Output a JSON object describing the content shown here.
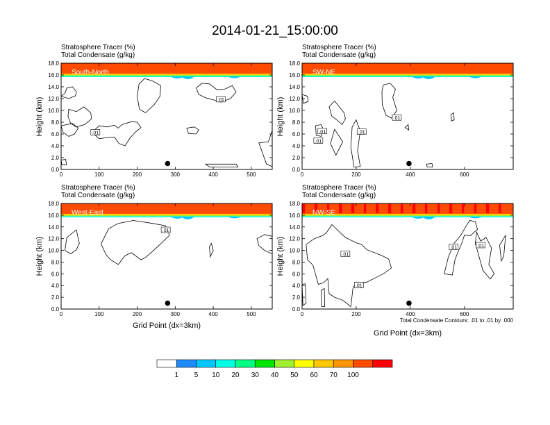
{
  "title": "2014-01-21_15:00:00",
  "panel_header": {
    "line1": "Stratosphere Tracer   (%)",
    "line2": "Total Condensate   (g/kg)"
  },
  "ylabel": "Height (km)",
  "xlabel": "Grid Point (dx=3km)",
  "contour_note": "Total Condensate Contours: .01 to .01 by .000",
  "chart_data": [
    {
      "type": "heatmap",
      "panel": "South-North",
      "title": "South-North",
      "xlim": [
        0,
        555
      ],
      "ylim": [
        0,
        18
      ],
      "xticks": [
        0,
        100,
        200,
        300,
        400,
        500
      ],
      "yticks": [
        0,
        2,
        4,
        6,
        8,
        10,
        12,
        14,
        16,
        18
      ],
      "ytick_labels": [
        "0.0",
        "2.0",
        "4.0",
        "6.0",
        "8.0",
        "10.0",
        "12.0",
        "14.0",
        "16.0",
        "18.0"
      ],
      "tracer_layer_km": [
        16.0,
        18.0
      ],
      "marker_point": [
        280,
        1.0
      ],
      "contour_labels": [
        {
          "text": ".01",
          "x": 90,
          "y": 6.3
        },
        {
          "text": ".01",
          "x": 420,
          "y": 11.9
        }
      ]
    },
    {
      "type": "heatmap",
      "panel": "SW-NE",
      "title": "SW-NE",
      "xlim": [
        0,
        780
      ],
      "ylim": [
        0,
        18
      ],
      "xticks": [
        0,
        200,
        400,
        600
      ],
      "yticks": [
        0,
        2,
        4,
        6,
        8,
        10,
        12,
        14,
        16,
        18
      ],
      "ytick_labels": [
        "0.0",
        "2.0",
        "4.0",
        "6.0",
        "8.0",
        "10.0",
        "12.0",
        "14.0",
        "16.0",
        "18.0"
      ],
      "tracer_layer_km": [
        16.0,
        18.0
      ],
      "marker_point": [
        395,
        1.0
      ],
      "contour_labels": [
        {
          "text": ".01",
          "x": 75,
          "y": 6.5
        },
        {
          "text": ".01",
          "x": 220,
          "y": 6.4
        },
        {
          "text": ".01",
          "x": 350,
          "y": 8.8
        },
        {
          "text": ".01",
          "x": 60,
          "y": 4.9
        }
      ]
    },
    {
      "type": "heatmap",
      "panel": "West-East",
      "title": "West-East",
      "xlim": [
        0,
        555
      ],
      "ylim": [
        0,
        18
      ],
      "xticks": [
        0,
        100,
        200,
        300,
        400,
        500
      ],
      "yticks": [
        0,
        2,
        4,
        6,
        8,
        10,
        12,
        14,
        16,
        18
      ],
      "ytick_labels": [
        "0.0",
        "2.0",
        "4.0",
        "6.0",
        "8.0",
        "10.0",
        "12.0",
        "14.0",
        "16.0",
        "18.0"
      ],
      "tracer_layer_km": [
        16.0,
        18.0
      ],
      "marker_point": [
        280,
        1.0
      ],
      "contour_labels": [
        {
          "text": ".01",
          "x": 275,
          "y": 13.5
        }
      ]
    },
    {
      "type": "heatmap",
      "panel": "NW-SE",
      "title": "NW-SE",
      "xlim": [
        0,
        780
      ],
      "ylim": [
        0,
        18
      ],
      "xticks": [
        0,
        200,
        400,
        600
      ],
      "yticks": [
        0,
        2,
        4,
        6,
        8,
        10,
        12,
        14,
        16,
        18
      ],
      "ytick_labels": [
        "0.0",
        "2.0",
        "4.0",
        "6.0",
        "8.0",
        "10.0",
        "12.0",
        "14.0",
        "16.0",
        "18.0"
      ],
      "tracer_layer_km": [
        16.0,
        18.0
      ],
      "marker_point": [
        395,
        1.0
      ],
      "contour_labels": [
        {
          "text": ".01",
          "x": 160,
          "y": 9.4
        },
        {
          "text": ".01",
          "x": 210,
          "y": 4.1
        },
        {
          "text": ".01",
          "x": 560,
          "y": 10.6
        },
        {
          "text": ".01",
          "x": 660,
          "y": 10.9
        }
      ]
    }
  ],
  "colorbar": {
    "labels": [
      "1",
      "5",
      "10",
      "20",
      "30",
      "40",
      "50",
      "60",
      "70",
      "100"
    ],
    "colors": [
      "#ffffff",
      "#1e8cff",
      "#00c8ff",
      "#00ffe6",
      "#00ff82",
      "#00e600",
      "#a0f032",
      "#ffff00",
      "#ffc800",
      "#ff9600",
      "#ff4b00",
      "#ff0000"
    ]
  }
}
